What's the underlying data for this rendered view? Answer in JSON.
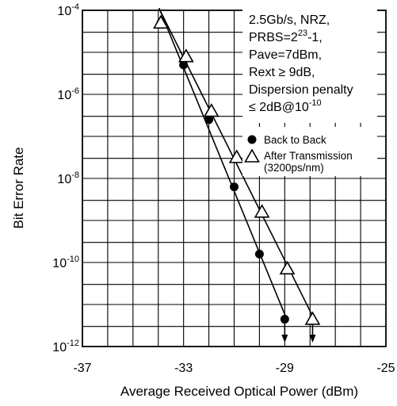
{
  "chart_data": {
    "type": "line",
    "xlabel": "Average Received Optical Power (dBm)",
    "ylabel": "Bit Error Rate",
    "xlim": [
      -37,
      -25
    ],
    "ylim_log10": [
      -12,
      -4
    ],
    "x_ticks": [
      {
        "value": -37,
        "label": "-37"
      },
      {
        "value": -33,
        "label": "-33"
      },
      {
        "value": -29,
        "label": "-29"
      },
      {
        "value": -25,
        "label": "-25"
      }
    ],
    "y_ticks": [
      {
        "value": -4,
        "base": "10",
        "exp": "-4"
      },
      {
        "value": -6,
        "base": "10",
        "exp": "-6"
      },
      {
        "value": -8,
        "base": "10",
        "exp": "-8"
      },
      {
        "value": -10,
        "base": "10",
        "exp": "-10"
      },
      {
        "value": -12,
        "base": "10",
        "exp": "-12"
      }
    ],
    "grid": true,
    "y_scale": "log",
    "annotation": {
      "line1": "2.5Gb/s, NRZ,",
      "line2_pre": "PRBS=2",
      "line2_sup": "23",
      "line2_post": "-1,",
      "line3": "Pave=7dBm,",
      "line4": "Rext ≥ 9dB,",
      "line5": "Dispersion penalty",
      "line6_pre": "≤ 2dB@10",
      "line6_sup": "-10"
    },
    "series": [
      {
        "name": "Back to Back",
        "marker": "filled-circle",
        "points": [
          {
            "x": -33.9,
            "y": -4.3
          },
          {
            "x": -33.0,
            "y": -5.3
          },
          {
            "x": -32.0,
            "y": -6.6
          },
          {
            "x": -31.0,
            "y": -8.2
          },
          {
            "x": -30.0,
            "y": -9.8
          },
          {
            "x": -29.0,
            "y": -11.35
          }
        ]
      },
      {
        "name": "After Transmission",
        "name_line2": "(3200ps/nm)",
        "marker": "open-triangle",
        "points": [
          {
            "x": -33.9,
            "y": -4.3
          },
          {
            "x": -32.9,
            "y": -5.1
          },
          {
            "x": -31.9,
            "y": -6.4
          },
          {
            "x": -30.9,
            "y": -7.5
          },
          {
            "x": -29.9,
            "y": -8.8
          },
          {
            "x": -28.9,
            "y": -10.15
          },
          {
            "x": -27.9,
            "y": -11.35
          }
        ]
      }
    ]
  }
}
